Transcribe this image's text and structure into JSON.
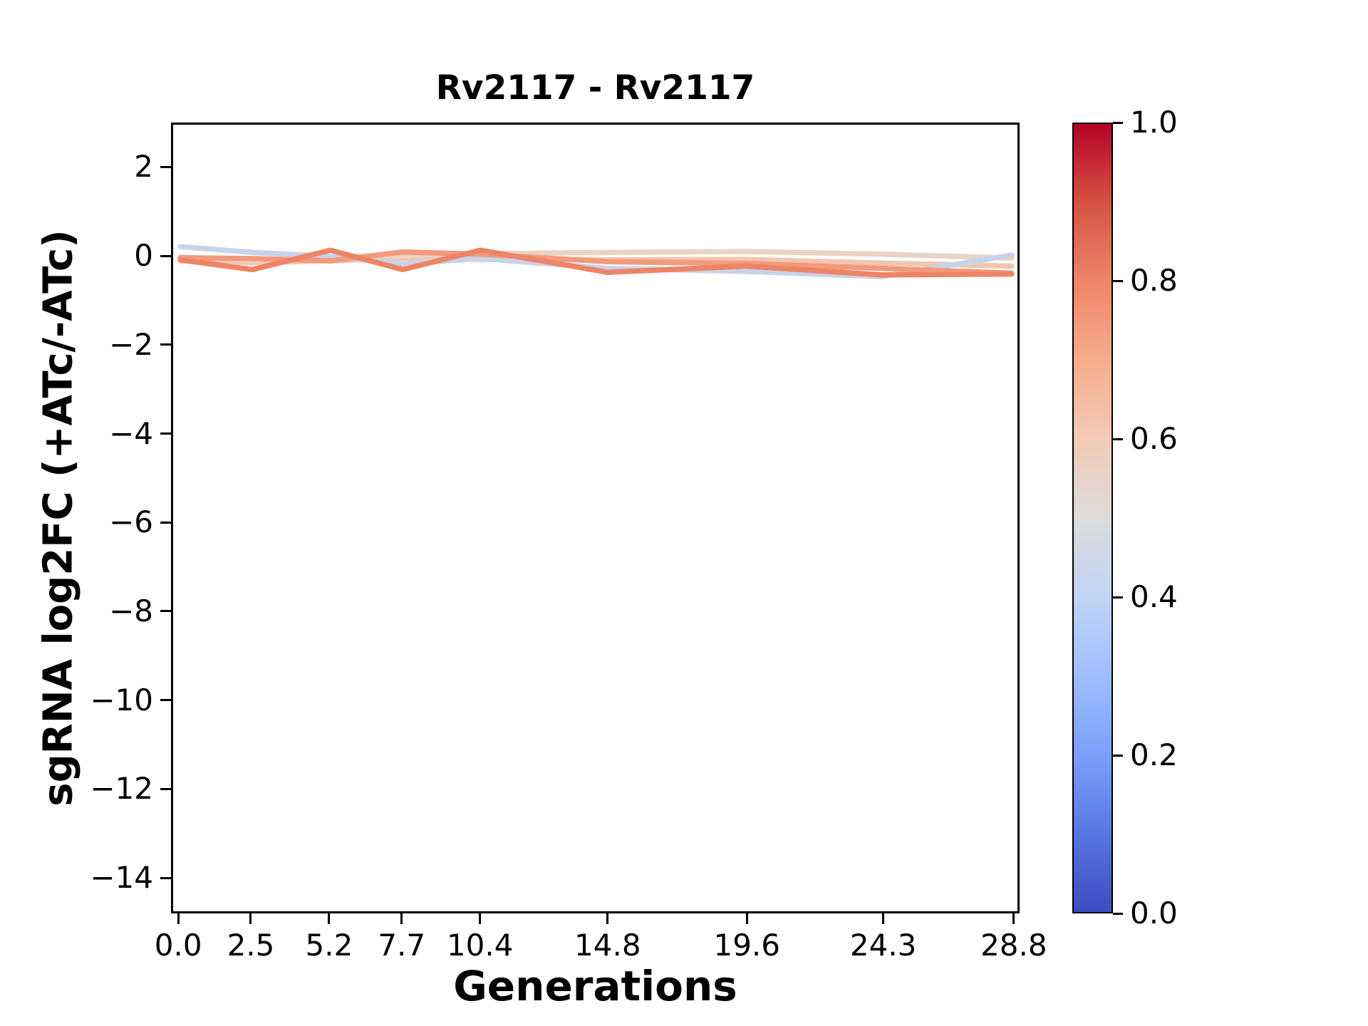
{
  "figure": {
    "background": "#ffffff",
    "text_color": "#000000"
  },
  "chart_data": {
    "type": "line",
    "title": "Rv2117 - Rv2117",
    "xlabel": "Generations",
    "ylabel": "sgRNA log2FC (+ATc/-ATc)",
    "xlim": [
      -0.25,
      29.0
    ],
    "ylim": [
      -14.8,
      3.0
    ],
    "grid": false,
    "legend_position": "none",
    "x": [
      0.0,
      2.5,
      5.2,
      7.7,
      10.4,
      14.8,
      19.6,
      24.3,
      28.8
    ],
    "xtick_labels": [
      "0.0",
      "2.5",
      "5.2",
      "7.7",
      "10.4",
      "14.8",
      "19.6",
      "24.3",
      "28.8"
    ],
    "ytick_values": [
      2,
      0,
      -2,
      -4,
      -6,
      -8,
      -10,
      -12,
      -14
    ],
    "ytick_labels": [
      "2",
      "0",
      "−2",
      "−4",
      "−6",
      "−8",
      "−10",
      "−12",
      "−14"
    ],
    "series": [
      {
        "id": "line-1",
        "colormap_value": 0.62,
        "color": "#f2c5ae",
        "values": [
          -0.08,
          -0.12,
          -0.08,
          -0.02,
          -0.05,
          -0.06,
          -0.05,
          -0.13,
          -0.2
        ]
      },
      {
        "id": "line-2",
        "colormap_value": 0.57,
        "color": "#e9d3c4",
        "values": [
          0.0,
          -0.06,
          0.0,
          0.04,
          0.08,
          0.11,
          0.13,
          0.07,
          -0.02
        ]
      },
      {
        "id": "line-3",
        "colormap_value": 0.43,
        "color": "#c7d3ea",
        "values": [
          0.24,
          0.11,
          0.02,
          -0.15,
          -0.03,
          -0.25,
          -0.32,
          -0.44,
          0.05
        ]
      },
      {
        "id": "line-4",
        "colormap_value": 0.74,
        "color": "#f29a7b",
        "values": [
          -0.01,
          -0.03,
          -0.08,
          0.12,
          0.07,
          -0.1,
          -0.14,
          -0.25,
          -0.36
        ]
      },
      {
        "id": "line-5",
        "colormap_value": 0.78,
        "color": "#ee8466",
        "values": [
          -0.06,
          -0.28,
          0.16,
          -0.28,
          0.16,
          -0.34,
          -0.2,
          -0.4,
          -0.38
        ]
      }
    ],
    "colorbar": {
      "colormap": "coolwarm",
      "min": 0.0,
      "max": 1.0,
      "tick_values": [
        0.0,
        0.2,
        0.4,
        0.6,
        0.8,
        1.0
      ],
      "tick_labels": [
        "0.0",
        "0.2",
        "0.4",
        "0.6",
        "0.8",
        "1.0"
      ],
      "gradient_stops": [
        {
          "t": 0.0,
          "color": "#3b4cc0"
        },
        {
          "t": 0.1,
          "color": "#5977e3"
        },
        {
          "t": 0.2,
          "color": "#7b9ff9"
        },
        {
          "t": 0.3,
          "color": "#9ebeff"
        },
        {
          "t": 0.4,
          "color": "#c0d4f5"
        },
        {
          "t": 0.5,
          "color": "#dddcdc"
        },
        {
          "t": 0.6,
          "color": "#f2cab5"
        },
        {
          "t": 0.7,
          "color": "#f7ac8e"
        },
        {
          "t": 0.8,
          "color": "#ee8468"
        },
        {
          "t": 0.9,
          "color": "#d65244"
        },
        {
          "t": 1.0,
          "color": "#b40426"
        }
      ]
    }
  }
}
